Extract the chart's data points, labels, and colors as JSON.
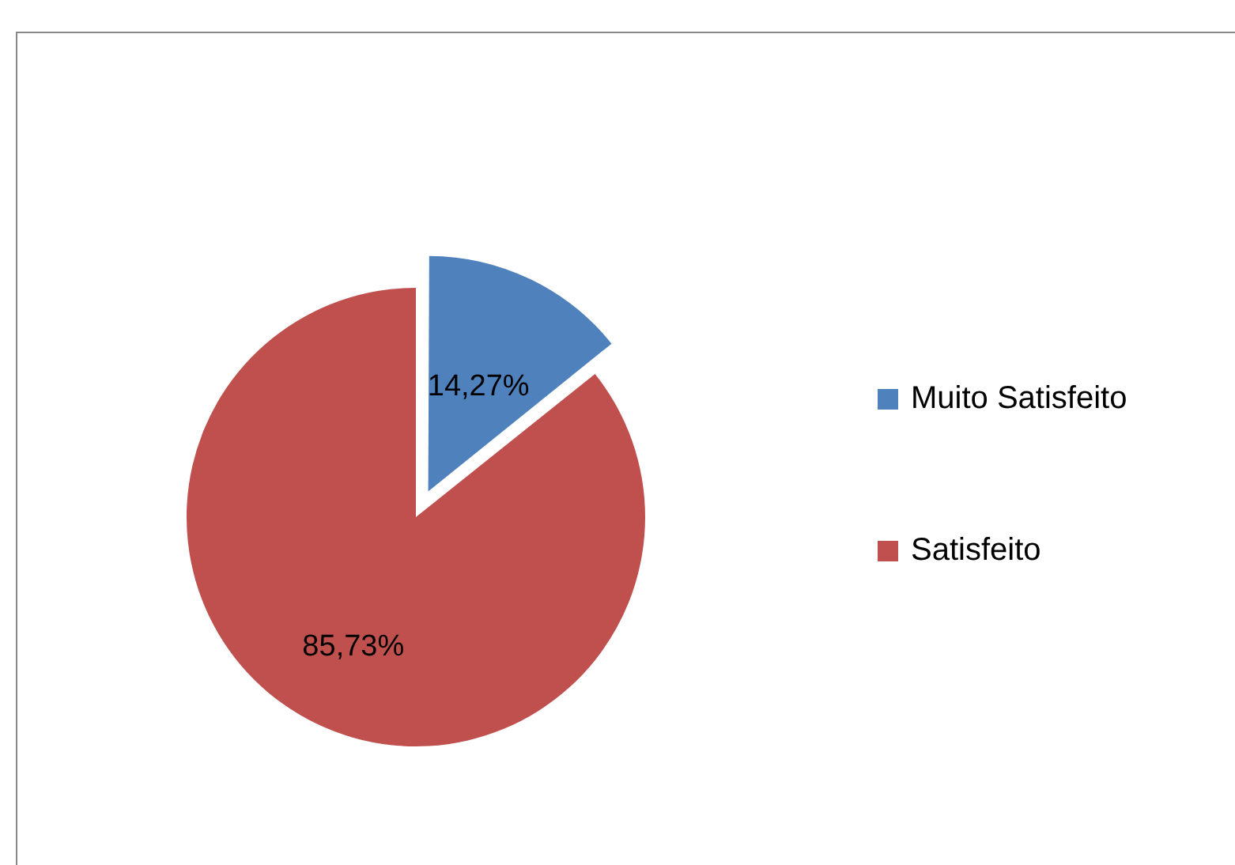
{
  "chart_data": {
    "type": "pie",
    "categories": [
      "Muito Satisfeito",
      "Satisfeito"
    ],
    "values": [
      14.27,
      85.73
    ],
    "colors": [
      "#4f81bd",
      "#c0504d"
    ],
    "value_labels": [
      "14,27%",
      "85,73%"
    ],
    "legend": "right"
  }
}
